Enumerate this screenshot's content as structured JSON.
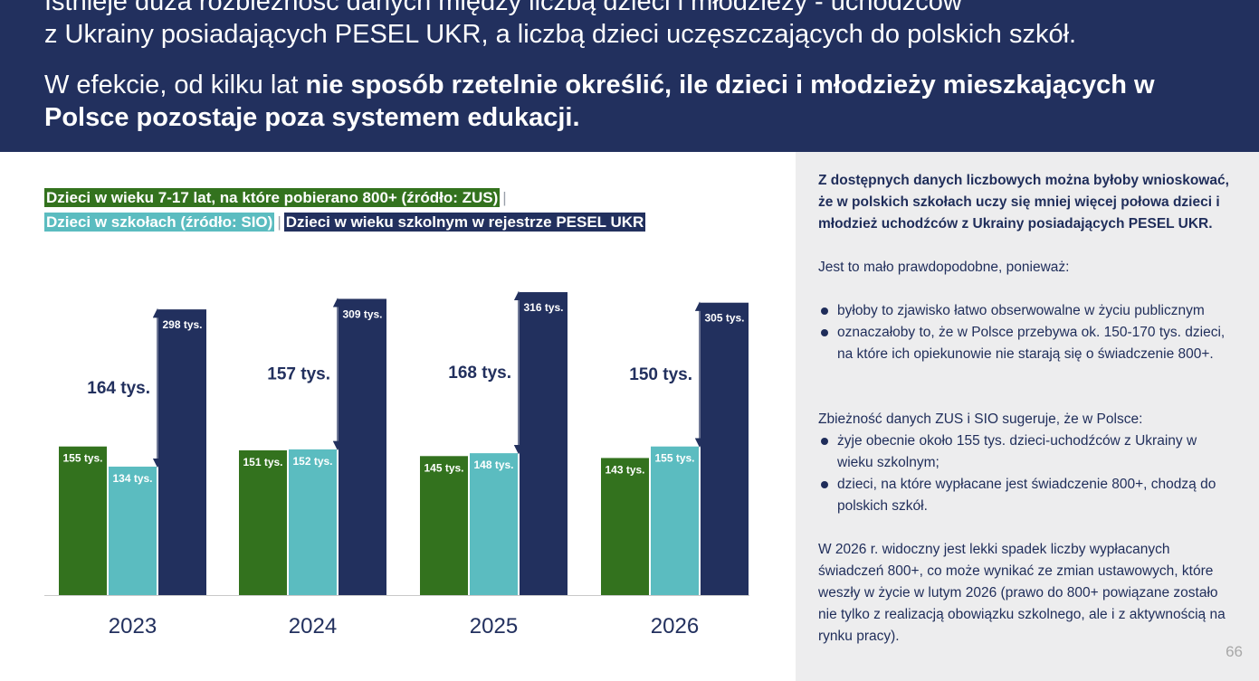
{
  "header": {
    "line1": "Istnieje duża rozbieżność danych między liczbą dzieci i młodzieży - uchodźców\nz Ukrainy posiadających PESEL UKR, a liczbą dzieci uczęszczających do polskich szkół.",
    "line2_plain": "W efekcie, od kilku lat ",
    "line2_bold": "nie sposób rzetelnie określić, ile dzieci i młodzieży mieszkających w Polsce pozostaje poza systemem edukacji."
  },
  "legend": {
    "zus": "Dzieci w wieku 7-17 lat, na które pobierano 800+ (źródło: ZUS)",
    "sio": "Dzieci w szkołach (źródło: SIO)",
    "pesel": "Dzieci w wieku szkolnym w rejestrze PESEL UKR",
    "separator": "|"
  },
  "colors": {
    "header_bg": "#22305e",
    "zus": "#33721e",
    "sio": "#5bbcc0",
    "pesel": "#22305e",
    "side_bg": "#ededee"
  },
  "chart_data": {
    "type": "bar",
    "categories": [
      "2023",
      "2024",
      "2025",
      "2026"
    ],
    "unit_suffix": " tys.",
    "series": [
      {
        "name": "Dzieci w wieku 7-17 lat, na które pobierano 800+ (źródło: ZUS)",
        "values": [
          155,
          151,
          145,
          143
        ]
      },
      {
        "name": "Dzieci w szkołach (źródło: SIO)",
        "values": [
          134,
          152,
          148,
          155
        ]
      },
      {
        "name": "Dzieci w wieku szkolnym w rejestrze PESEL UKR",
        "values": [
          298,
          309,
          316,
          305
        ]
      }
    ],
    "gap_labels": [
      "164 tys.",
      "157 tys.",
      "168 tys.",
      "150 tys."
    ],
    "ylim": [
      0,
      320
    ],
    "grid": false
  },
  "side": {
    "intro": "Z dostępnych danych liczbowych można byłoby wnioskować, że w polskich szkołach uczy się mniej więcej połowa dzieci i młodzież uchodźców z Ukrainy posiadających PESEL UKR.",
    "p2": "Jest to mało prawdopodobne, ponieważ:",
    "p2_items": [
      "byłoby to zjawisko  łatwo obserwowalne  w życiu publicznym",
      "oznaczałoby to, że w Polsce przebywa ok. 150-170 tys. dzieci,  na które ich opiekunowie nie starają się o świadczenie 800+."
    ],
    "p3": "Zbieżność danych ZUS i SIO sugeruje, że w Polsce:",
    "p3_items": [
      "żyje obecnie około 155 tys. dzieci-uchodźców z Ukrainy w wieku szkolnym;",
      "dzieci, na które wypłacane jest świadczenie 800+, chodzą do polskich szkół."
    ],
    "p4": "W 2026 r. widoczny jest lekki spadek liczby wypłacanych świadczeń 800+, co może wynikać ze zmian ustawowych, które weszły w życie w lutym 2026 (prawo do 800+ powiązane zostało nie tylko z realizacją obowiązku szkolnego, ale i z aktywnością na rynku pracy)."
  },
  "page_number": "66"
}
